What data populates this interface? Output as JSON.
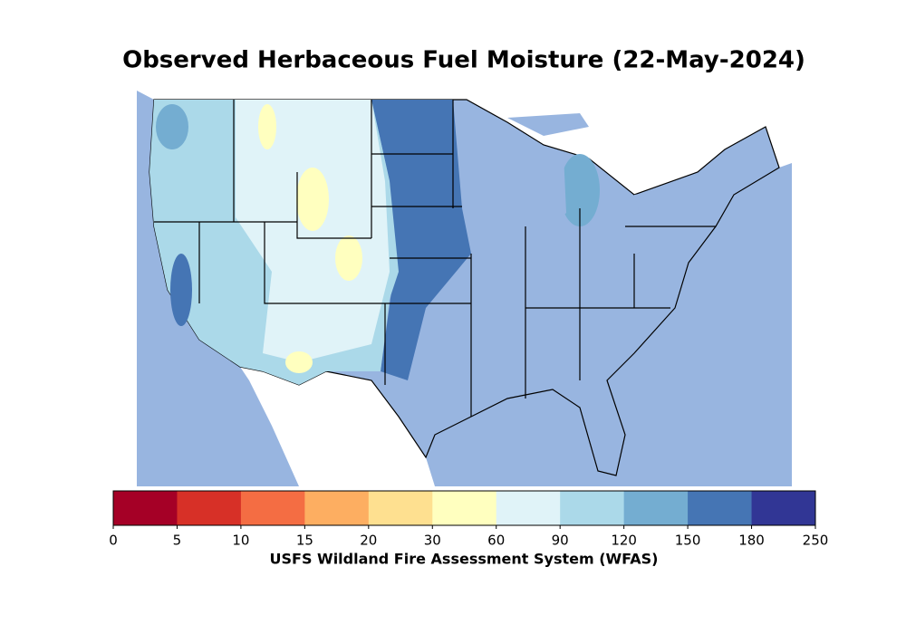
{
  "title": "Observed Herbaceous Fuel Moisture (22-May-2024)",
  "colorbar": {
    "bounds": [
      0,
      5,
      10,
      15,
      20,
      30,
      60,
      90,
      120,
      150,
      180,
      250
    ],
    "colors": [
      "#a50026",
      "#d73027",
      "#f46d43",
      "#fdae61",
      "#fee090",
      "#ffffbf",
      "#e0f3f8",
      "#abd9e9",
      "#74add1",
      "#4575b4",
      "#313695"
    ],
    "label": "USFS Wildland Fire Assessment System (WFAS)"
  }
}
